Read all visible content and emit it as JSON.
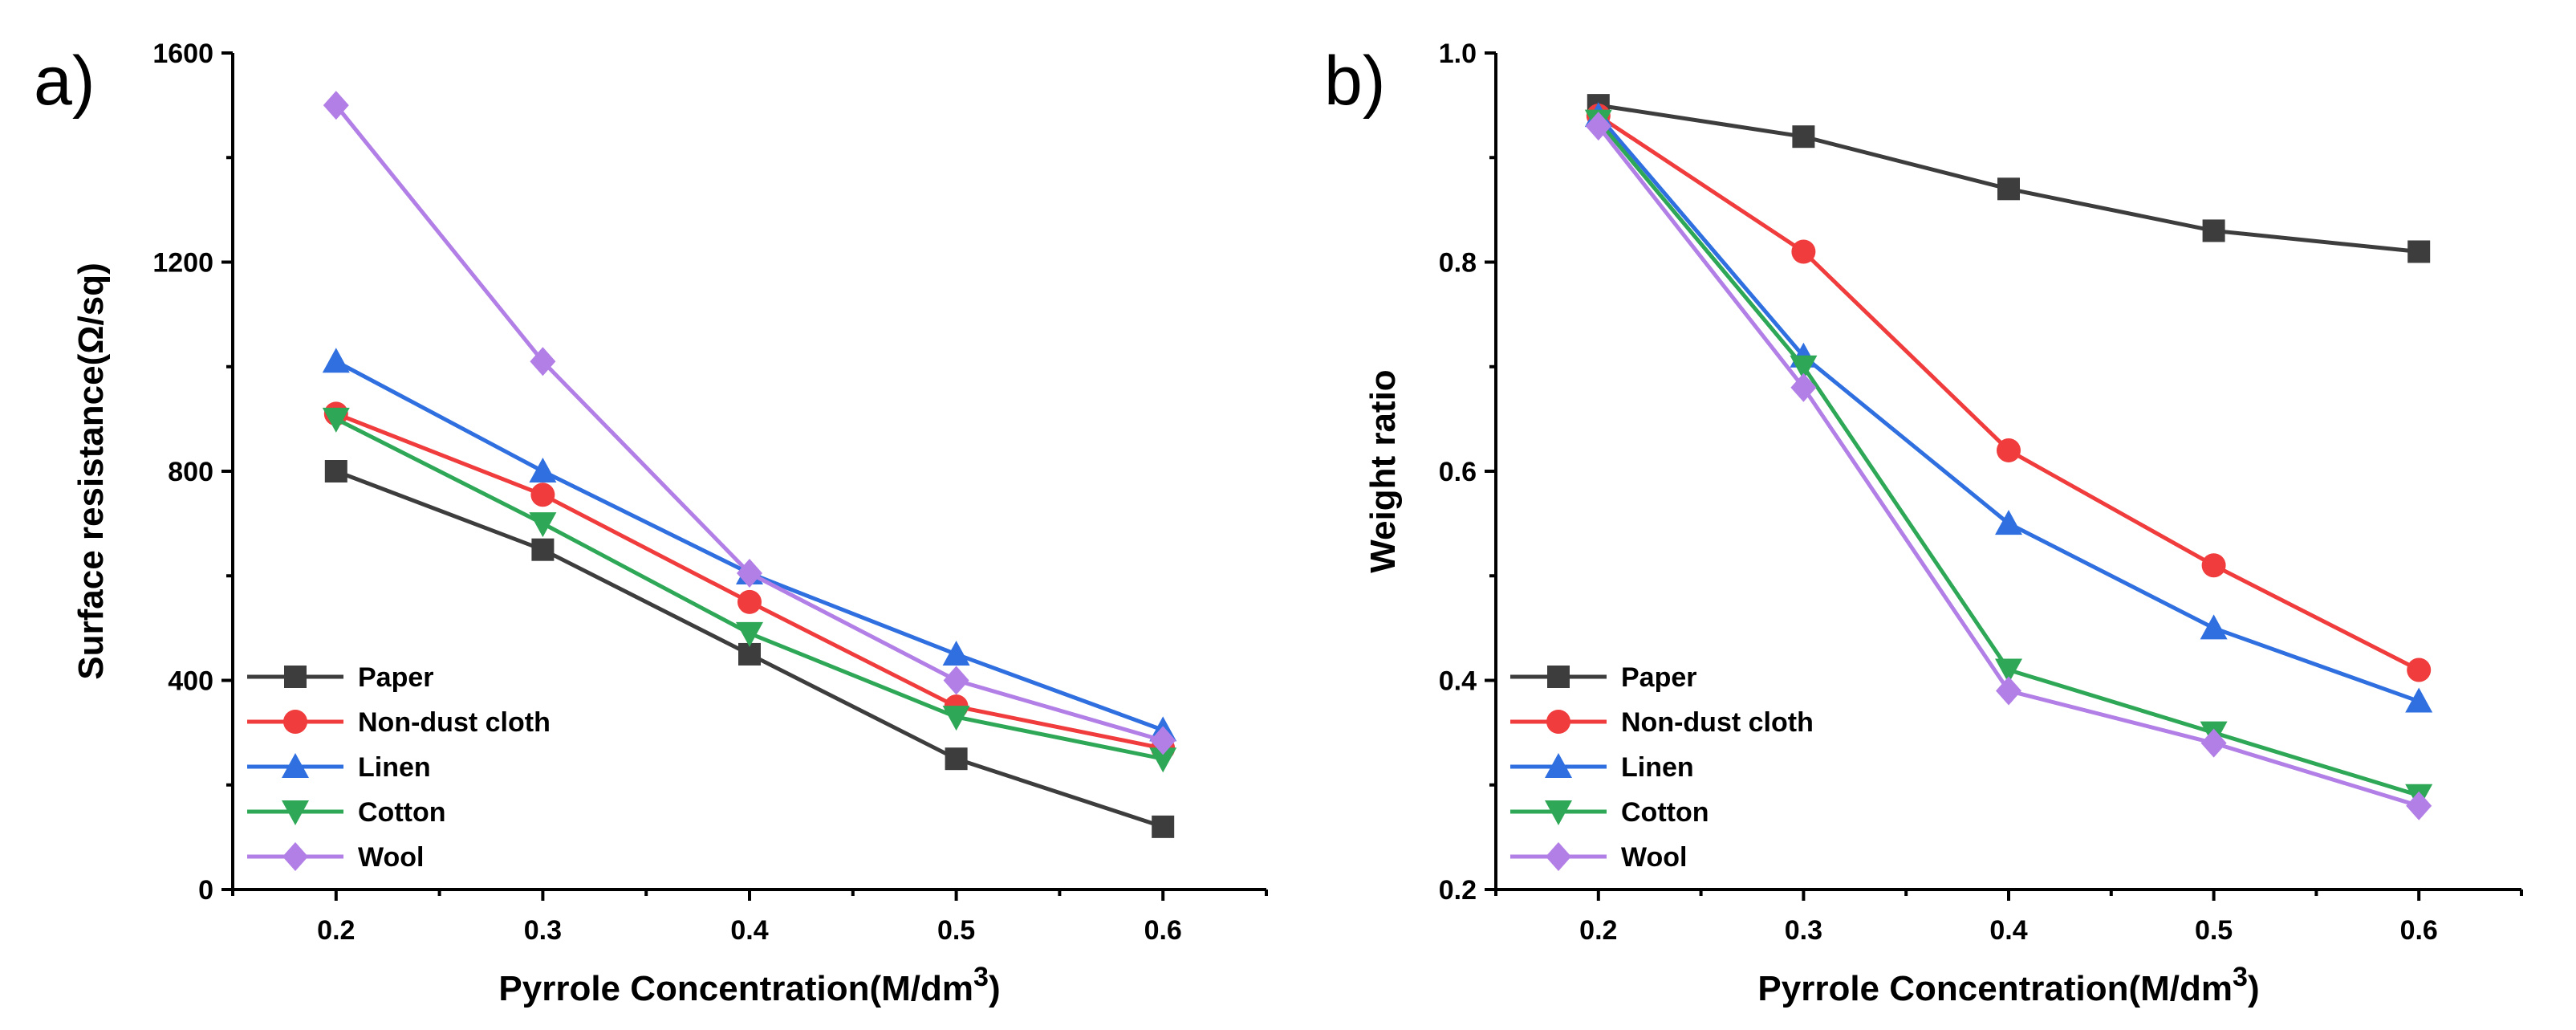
{
  "chart_data": [
    {
      "panel_label": "a)",
      "type": "line",
      "xlabel": "Pyrrole Concentration(M/dm",
      "xlabel_sup": "3",
      "xlabel_suffix": ")",
      "ylabel": "Surface resistance(Ω/sq)",
      "x": [
        0.2,
        0.3,
        0.4,
        0.5,
        0.6
      ],
      "xlim": [
        0.15,
        0.65
      ],
      "ylim": [
        0,
        1600
      ],
      "xticks": [
        "0.2",
        "0.3",
        "0.4",
        "0.5",
        "0.6"
      ],
      "yticks": [
        "0",
        "400",
        "800",
        "1200",
        "1600"
      ],
      "legend_position": "bottom-left",
      "series": [
        {
          "name": "Paper",
          "color": "#3d3d3d",
          "marker": "square",
          "values": [
            800,
            650,
            450,
            250,
            120
          ]
        },
        {
          "name": "Non-dust cloth",
          "color": "#f03c3c",
          "marker": "circle",
          "values": [
            910,
            755,
            550,
            350,
            270
          ]
        },
        {
          "name": "Linen",
          "color": "#2f6fe0",
          "marker": "triangle-up",
          "values": [
            1010,
            800,
            605,
            450,
            305
          ]
        },
        {
          "name": "Cotton",
          "color": "#2ea856",
          "marker": "triangle-down",
          "values": [
            900,
            700,
            490,
            330,
            250
          ]
        },
        {
          "name": "Wool",
          "color": "#b27fe6",
          "marker": "diamond",
          "values": [
            1500,
            1010,
            605,
            400,
            285
          ]
        }
      ]
    },
    {
      "panel_label": "b)",
      "type": "line",
      "xlabel": "Pyrrole Concentration(M/dm",
      "xlabel_sup": "3",
      "xlabel_suffix": ")",
      "ylabel": "Weight ratio",
      "x": [
        0.2,
        0.3,
        0.4,
        0.5,
        0.6
      ],
      "xlim": [
        0.15,
        0.65
      ],
      "ylim": [
        0.2,
        1.0
      ],
      "xticks": [
        "0.2",
        "0.3",
        "0.4",
        "0.5",
        "0.6"
      ],
      "yticks": [
        "0.2",
        "0.4",
        "0.6",
        "0.8",
        "1.0"
      ],
      "legend_position": "bottom-left",
      "series": [
        {
          "name": "Paper",
          "color": "#3d3d3d",
          "marker": "square",
          "values": [
            0.95,
            0.92,
            0.87,
            0.83,
            0.81
          ]
        },
        {
          "name": "Non-dust cloth",
          "color": "#f03c3c",
          "marker": "circle",
          "values": [
            0.94,
            0.81,
            0.62,
            0.51,
            0.41
          ]
        },
        {
          "name": "Linen",
          "color": "#2f6fe0",
          "marker": "triangle-up",
          "values": [
            0.94,
            0.71,
            0.55,
            0.45,
            0.38
          ]
        },
        {
          "name": "Cotton",
          "color": "#2ea856",
          "marker": "triangle-down",
          "values": [
            0.935,
            0.7,
            0.41,
            0.35,
            0.29
          ]
        },
        {
          "name": "Wool",
          "color": "#b27fe6",
          "marker": "diamond",
          "values": [
            0.93,
            0.68,
            0.39,
            0.34,
            0.28
          ]
        }
      ]
    }
  ]
}
